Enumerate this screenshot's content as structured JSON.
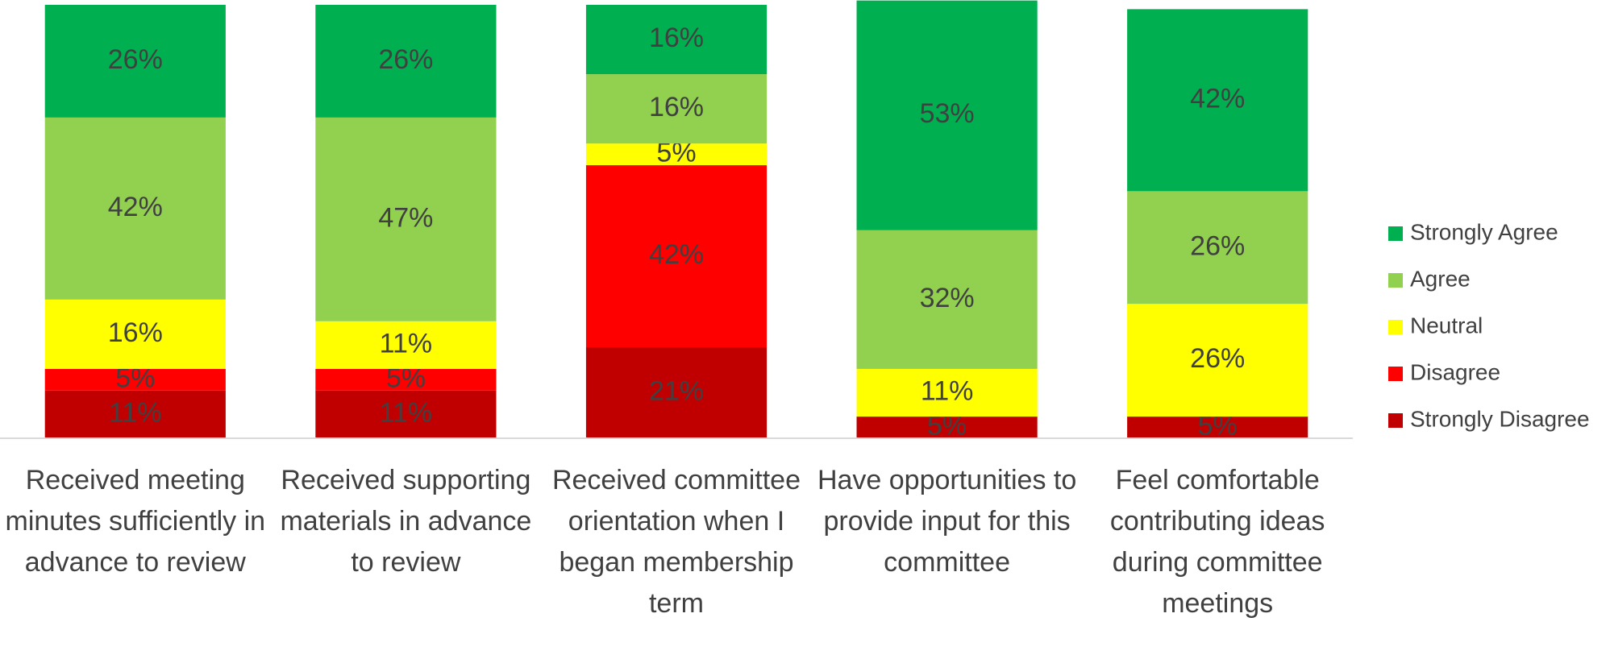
{
  "chart_data": {
    "type": "stacked_bar",
    "categories": [
      "Received meeting minutes sufficiently in advance to review",
      "Received supporting materials in advance to review",
      "Received committee orientation when I began membership term",
      "Have opportunities to provide input for this committee",
      "Feel comfortable contributing ideas during committee meetings"
    ],
    "series": [
      {
        "name": "Strongly Agree",
        "color": "#00b050",
        "values": [
          26,
          26,
          16,
          53,
          42
        ],
        "value_labels": [
          "26%",
          "26%",
          "16%",
          "53%",
          "42%"
        ]
      },
      {
        "name": "Agree",
        "color": "#92d050",
        "values": [
          42,
          47,
          16,
          32,
          26
        ],
        "value_labels": [
          "42%",
          "47%",
          "16%",
          "32%",
          "26%"
        ]
      },
      {
        "name": "Neutral",
        "color": "#ffff00",
        "values": [
          16,
          11,
          5,
          11,
          26
        ],
        "value_labels": [
          "16%",
          "11%",
          "5%",
          "11%",
          "26%"
        ]
      },
      {
        "name": "Disagree",
        "color": "#ff0000",
        "values": [
          5,
          5,
          42,
          null,
          null
        ],
        "value_labels": [
          "5%",
          "5%",
          "42%",
          null,
          null
        ]
      },
      {
        "name": "Strongly Disagree",
        "color": "#c00000",
        "values": [
          11,
          11,
          21,
          5,
          5
        ],
        "value_labels": [
          "11%",
          "11%",
          "21%",
          "5%",
          "5%"
        ]
      }
    ],
    "ylim": [
      0,
      100
    ],
    "legend": "right"
  }
}
